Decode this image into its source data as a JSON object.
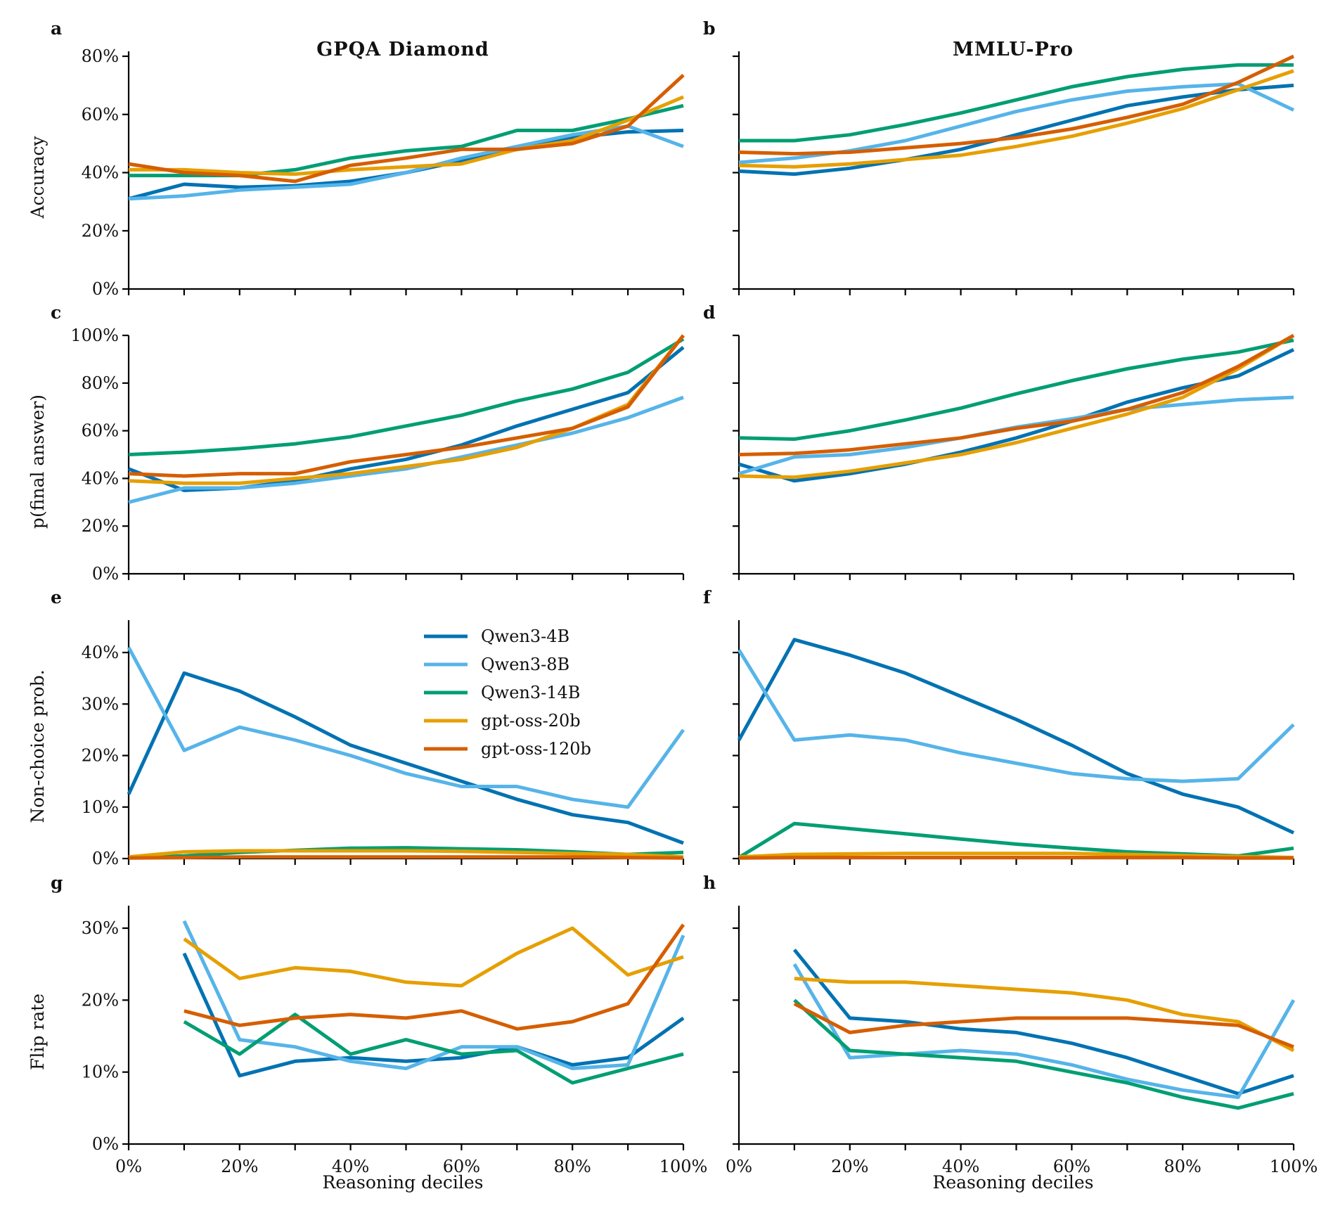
{
  "colors": {
    "Qwen3-4B": "#0072b2",
    "Qwen3-8B": "#56b4e9",
    "Qwen3-14B": "#009e73",
    "gpt-oss-20b": "#e69f00",
    "gpt-oss-120b": "#d55e00"
  },
  "legend": [
    "Qwen3-4B",
    "Qwen3-8B",
    "Qwen3-14B",
    "gpt-oss-20b",
    "gpt-oss-120b"
  ],
  "columns": {
    "left_title": "GPQA Diamond",
    "right_title": "MMLU-Pro"
  },
  "xlabel": "Reasoning deciles",
  "chart_data": [
    {
      "panel": "a",
      "type": "line",
      "title": "GPQA Diamond",
      "ylabel": "Accuracy",
      "x": [
        0,
        10,
        20,
        30,
        40,
        50,
        60,
        70,
        80,
        90,
        100
      ],
      "xlim": [
        0,
        100
      ],
      "xticks": [
        "0%",
        "20%",
        "40%",
        "60%",
        "80%",
        "100%"
      ],
      "ylim": [
        0,
        80
      ],
      "yticks": [
        "0%",
        "20%",
        "40%",
        "60%",
        "80%"
      ],
      "series": [
        {
          "name": "Qwen3-4B",
          "values": [
            31,
            36,
            35,
            35.5,
            37,
            40,
            44,
            48,
            52,
            54,
            54.5
          ]
        },
        {
          "name": "Qwen3-8B",
          "values": [
            31,
            32,
            34,
            35,
            36,
            40,
            45,
            49,
            53,
            56,
            49
          ]
        },
        {
          "name": "Qwen3-14B",
          "values": [
            39,
            39,
            39,
            41,
            45,
            47.5,
            49,
            54.5,
            54.5,
            58.5,
            63
          ]
        },
        {
          "name": "gpt-oss-20b",
          "values": [
            41,
            41,
            40,
            39.5,
            41,
            42,
            43,
            48,
            51,
            58,
            66
          ]
        },
        {
          "name": "gpt-oss-120b",
          "values": [
            43,
            40,
            39,
            37,
            42.5,
            45,
            48,
            48,
            50,
            56,
            73.5
          ]
        }
      ]
    },
    {
      "panel": "b",
      "type": "line",
      "title": "MMLU-Pro",
      "ylabel": "",
      "x": [
        0,
        10,
        20,
        30,
        40,
        50,
        60,
        70,
        80,
        90,
        100
      ],
      "xlim": [
        0,
        100
      ],
      "xticks": [
        "0%",
        "20%",
        "40%",
        "60%",
        "80%",
        "100%"
      ],
      "ylim": [
        0,
        80
      ],
      "yticks": [],
      "series": [
        {
          "name": "Qwen3-4B",
          "values": [
            40.5,
            39.5,
            41.5,
            44.5,
            48,
            53,
            58,
            63,
            66,
            68.5,
            70
          ]
        },
        {
          "name": "Qwen3-8B",
          "values": [
            43.5,
            45,
            47.5,
            51,
            56,
            61,
            65,
            68,
            69.5,
            70.5,
            61.5
          ]
        },
        {
          "name": "Qwen3-14B",
          "values": [
            51,
            51,
            53,
            56.5,
            60.5,
            65,
            69.5,
            73,
            75.5,
            77,
            77
          ]
        },
        {
          "name": "gpt-oss-20b",
          "values": [
            42.5,
            42,
            43,
            44.5,
            46,
            49,
            52.5,
            57,
            62,
            68.5,
            75
          ]
        },
        {
          "name": "gpt-oss-120b",
          "values": [
            47,
            46.5,
            47,
            48.5,
            50,
            52,
            55,
            59,
            63.5,
            71,
            80
          ]
        }
      ]
    },
    {
      "panel": "c",
      "type": "line",
      "title": "",
      "ylabel": "p(final answer)",
      "x": [
        0,
        10,
        20,
        30,
        40,
        50,
        60,
        70,
        80,
        90,
        100
      ],
      "xlim": [
        0,
        100
      ],
      "xticks": [
        "0%",
        "20%",
        "40%",
        "60%",
        "80%",
        "100%"
      ],
      "ylim": [
        0,
        100
      ],
      "yticks": [
        "0%",
        "20%",
        "40%",
        "60%",
        "80%",
        "100%"
      ],
      "series": [
        {
          "name": "Qwen3-4B",
          "values": [
            44,
            35,
            36,
            39,
            44,
            48,
            54,
            62,
            69,
            76,
            95
          ]
        },
        {
          "name": "Qwen3-8B",
          "values": [
            30,
            36,
            36,
            38,
            41,
            44,
            49,
            54,
            59,
            65.5,
            74
          ]
        },
        {
          "name": "Qwen3-14B",
          "values": [
            50,
            51,
            52.5,
            54.5,
            57.5,
            62,
            66.5,
            72.5,
            77.5,
            84.5,
            98.5
          ]
        },
        {
          "name": "gpt-oss-20b",
          "values": [
            39,
            38,
            38,
            40,
            42,
            45,
            48,
            53,
            61,
            71,
            100
          ]
        },
        {
          "name": "gpt-oss-120b",
          "values": [
            42,
            41,
            42,
            42,
            47,
            50,
            53,
            57,
            61,
            70,
            100
          ]
        }
      ]
    },
    {
      "panel": "d",
      "type": "line",
      "title": "",
      "ylabel": "",
      "x": [
        0,
        10,
        20,
        30,
        40,
        50,
        60,
        70,
        80,
        90,
        100
      ],
      "xlim": [
        0,
        100
      ],
      "xticks": [
        "0%",
        "20%",
        "40%",
        "60%",
        "80%",
        "100%"
      ],
      "ylim": [
        0,
        100
      ],
      "yticks": [],
      "series": [
        {
          "name": "Qwen3-4B",
          "values": [
            46,
            39,
            42,
            46,
            51,
            57,
            64,
            72,
            78,
            83,
            94
          ]
        },
        {
          "name": "Qwen3-8B",
          "values": [
            42,
            49,
            50,
            53,
            57,
            61.5,
            65,
            69,
            71,
            73,
            74
          ]
        },
        {
          "name": "Qwen3-14B",
          "values": [
            57,
            56.5,
            60,
            64.5,
            69.5,
            75.5,
            81,
            86,
            90,
            93,
            98
          ]
        },
        {
          "name": "gpt-oss-20b",
          "values": [
            41,
            40.5,
            43,
            46.5,
            50,
            55,
            61,
            67,
            74,
            86,
            100
          ]
        },
        {
          "name": "gpt-oss-120b",
          "values": [
            50,
            50.5,
            52,
            54.5,
            57,
            61,
            64,
            69,
            76,
            87,
            100
          ]
        }
      ]
    },
    {
      "panel": "e",
      "type": "line",
      "title": "",
      "ylabel": "Non-choice prob.",
      "x": [
        0,
        10,
        20,
        30,
        40,
        50,
        60,
        70,
        80,
        90,
        100
      ],
      "xlim": [
        0,
        100
      ],
      "xticks": [
        "0%",
        "20%",
        "40%",
        "60%",
        "80%",
        "100%"
      ],
      "ylim": [
        0,
        46
      ],
      "yticks": [
        "0%",
        "10%",
        "20%",
        "30%",
        "40%"
      ],
      "series": [
        {
          "name": "Qwen3-4B",
          "values": [
            12.5,
            36,
            32.5,
            27.5,
            22,
            18.5,
            15,
            11.5,
            8.5,
            7,
            3
          ]
        },
        {
          "name": "Qwen3-8B",
          "values": [
            41,
            21,
            25.5,
            23,
            20,
            16.5,
            14,
            14,
            11.5,
            10,
            25
          ]
        },
        {
          "name": "Qwen3-14B",
          "values": [
            0.2,
            0.5,
            1.2,
            1.6,
            2,
            2.1,
            1.9,
            1.7,
            1.3,
            0.8,
            1.2
          ]
        },
        {
          "name": "gpt-oss-20b",
          "values": [
            0.3,
            1.3,
            1.5,
            1.5,
            1.5,
            1.5,
            1.4,
            1.2,
            1,
            0.8,
            0.3
          ]
        },
        {
          "name": "gpt-oss-120b",
          "values": [
            0.1,
            0.2,
            0.3,
            0.3,
            0.3,
            0.3,
            0.3,
            0.3,
            0.3,
            0.2,
            0.1
          ]
        }
      ]
    },
    {
      "panel": "f",
      "type": "line",
      "title": "",
      "ylabel": "",
      "x": [
        0,
        10,
        20,
        30,
        40,
        50,
        60,
        70,
        80,
        90,
        100
      ],
      "xlim": [
        0,
        100
      ],
      "xticks": [
        "0%",
        "20%",
        "40%",
        "60%",
        "80%",
        "100%"
      ],
      "ylim": [
        0,
        46
      ],
      "yticks": [],
      "series": [
        {
          "name": "Qwen3-4B",
          "values": [
            23,
            42.5,
            39.5,
            36,
            31.5,
            27,
            22,
            16.5,
            12.5,
            10,
            5
          ]
        },
        {
          "name": "Qwen3-8B",
          "values": [
            40.5,
            23,
            24,
            23,
            20.5,
            18.5,
            16.5,
            15.5,
            15,
            15.5,
            26
          ]
        },
        {
          "name": "Qwen3-14B",
          "values": [
            0.2,
            6.8,
            5.8,
            4.8,
            3.8,
            2.8,
            2,
            1.3,
            0.9,
            0.5,
            2
          ]
        },
        {
          "name": "gpt-oss-20b",
          "values": [
            0.3,
            0.8,
            0.9,
            1,
            1,
            1,
            1,
            0.8,
            0.6,
            0.4,
            0.2
          ]
        },
        {
          "name": "gpt-oss-120b",
          "values": [
            0.1,
            0.2,
            0.2,
            0.2,
            0.2,
            0.2,
            0.2,
            0.2,
            0.2,
            0.1,
            0.1
          ]
        }
      ]
    },
    {
      "panel": "g",
      "type": "line",
      "title": "",
      "ylabel": "Flip rate",
      "x": [
        10,
        20,
        30,
        40,
        50,
        60,
        70,
        80,
        90,
        100
      ],
      "xlim": [
        0,
        100
      ],
      "xticks": [
        "0%",
        "20%",
        "40%",
        "60%",
        "80%",
        "100%"
      ],
      "ylim": [
        0,
        33
      ],
      "yticks": [
        "0%",
        "10%",
        "20%",
        "30%"
      ],
      "series": [
        {
          "name": "Qwen3-4B",
          "values": [
            26.5,
            9.5,
            11.5,
            12,
            11.5,
            12,
            13.5,
            11,
            12,
            17.5
          ]
        },
        {
          "name": "Qwen3-8B",
          "values": [
            31,
            14.5,
            13.5,
            11.5,
            10.5,
            13.5,
            13.5,
            10.5,
            11,
            29
          ]
        },
        {
          "name": "Qwen3-14B",
          "values": [
            17,
            12.5,
            18,
            12.5,
            14.5,
            12.5,
            13,
            8.5,
            10.5,
            12.5
          ]
        },
        {
          "name": "gpt-oss-20b",
          "values": [
            28.5,
            23,
            24.5,
            24,
            22.5,
            22,
            26.5,
            30,
            23.5,
            26
          ]
        },
        {
          "name": "gpt-oss-120b",
          "values": [
            18.5,
            16.5,
            17.5,
            18,
            17.5,
            18.5,
            16,
            17,
            19.5,
            30.5
          ]
        }
      ]
    },
    {
      "panel": "h",
      "type": "line",
      "title": "",
      "ylabel": "",
      "x": [
        10,
        20,
        30,
        40,
        50,
        60,
        70,
        80,
        90,
        100
      ],
      "xlim": [
        0,
        100
      ],
      "xticks": [
        "0%",
        "20%",
        "40%",
        "60%",
        "80%",
        "100%"
      ],
      "ylim": [
        0,
        33
      ],
      "yticks": [],
      "series": [
        {
          "name": "Qwen3-4B",
          "values": [
            27,
            17.5,
            17,
            16,
            15.5,
            14,
            12,
            9.5,
            7,
            9.5
          ]
        },
        {
          "name": "Qwen3-8B",
          "values": [
            25,
            12,
            12.5,
            13,
            12.5,
            11,
            9,
            7.5,
            6.5,
            20
          ]
        },
        {
          "name": "Qwen3-14B",
          "values": [
            20,
            13,
            12.5,
            12,
            11.5,
            10,
            8.5,
            6.5,
            5,
            7
          ]
        },
        {
          "name": "gpt-oss-20b",
          "values": [
            23,
            22.5,
            22.5,
            22,
            21.5,
            21,
            20,
            18,
            17,
            13
          ]
        },
        {
          "name": "gpt-oss-120b",
          "values": [
            19.5,
            15.5,
            16.5,
            17,
            17.5,
            17.5,
            17.5,
            17,
            16.5,
            13.5
          ]
        }
      ]
    }
  ]
}
